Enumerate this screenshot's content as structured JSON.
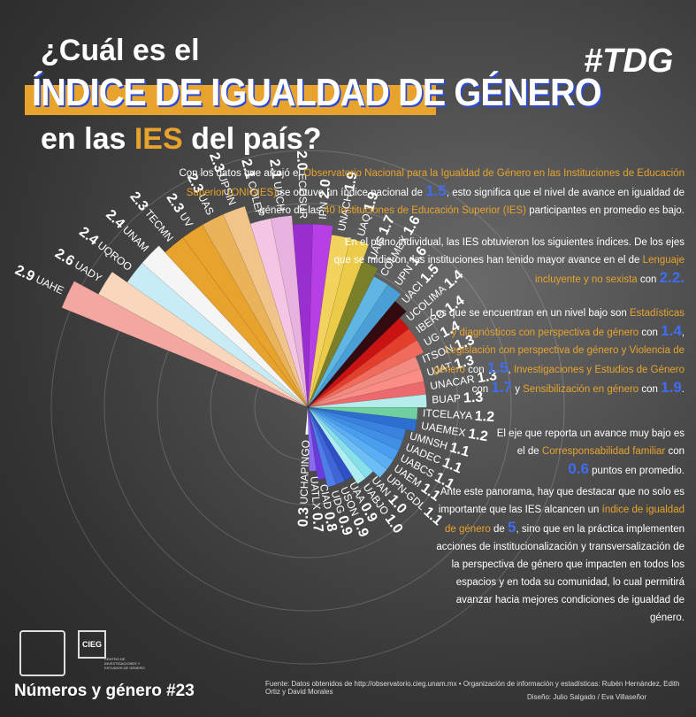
{
  "header": {
    "title_line1": "¿Cuál es el",
    "title_line2": "ÍNDICE DE IGUALDAD DE GÉNERO",
    "title_line3_a": "en las",
    "title_line3_hl": "IES",
    "title_line3_b": "del país?",
    "hashtag": "#TDG"
  },
  "paragraphs": {
    "p1_a": "Con los datos que arrojó el",
    "p1_hl1": "Observatorio Nacional para la Igualdad de Género en las Instituciones de Educación Superior (ONIGIES)",
    "p1_b": "se obtuvo un índice nacional de",
    "p1_num": "1.5",
    "p1_c": ", esto significa que el nivel de avance en igualdad de género de las",
    "p1_hl2": "40 Instituciones de Educación Superior (IES)",
    "p1_d": "participantes en promedio es bajo.",
    "p2_a": "En el plano individual, las IES obtuvieron los siguientes índices. De los ejes que se midieron, las instituciones han tenido mayor avance en el de",
    "p2_hl": "Lenguaje incluyente y no sexista",
    "p2_b": "con",
    "p2_num": "2.2.",
    "p3_a": "Los que se encuentran en un nivel bajo son",
    "p3_hl1": "Estadísticas y diagnósticos con perspectiva de género",
    "p3_b": "con",
    "p3_num1": "1.4",
    "p3_c": ",",
    "p3_hl2": "Legislación con perspectiva de género y Violencia de género",
    "p3_d": "con",
    "p3_num2": "1.5",
    "p3_e": ",",
    "p3_hl3": "Investigaciones y Estudios de Género",
    "p3_f": "con",
    "p3_num3": "1.7",
    "p3_g": "y",
    "p3_hl4": "Sensibilización en género",
    "p3_h": "con",
    "p3_num4": "1.9",
    "p3_i": ".",
    "p4_a": "El eje que reporta un avance muy bajo es el de",
    "p4_hl": "Corresponsabilidad familiar",
    "p4_b": "con",
    "p4_num": "0.6",
    "p4_c": "puntos en promedio.",
    "p5_a": "Ante este panorama, hay que destacar que no solo es importante que las IES alcancen un",
    "p5_hl": "índice de igualdad de género",
    "p5_b": "de",
    "p5_num": "5",
    "p5_c": ", sino que en la práctica implementen acciones de institucionalización y transversalización de la perspectiva de género que impacten en todos los espacios y en toda su comunidad, lo cual permitirá avanzar hacia mejores condiciones de igualdad de género."
  },
  "footer": {
    "series_title": "Números y género #23",
    "source": "Fuente: Datos obtenidos de http://observatorio.cieg.unam.mx   •   Organización de información y estadísticas: Rubén Hernández, Edith Ortiz y David Morales",
    "design": "Diseño: Julio Salgado / Eva Villaseñor",
    "logo_text": "CENTRO DE INVESTIGACIONES Y ESTUDIOS DE GÉNERO",
    "logo_letters": "CIEG"
  },
  "chart_data": {
    "type": "bar",
    "subtype": "radial",
    "categories": [
      "UAHE",
      "UADY",
      "UQROO",
      "UNAM",
      "TECMN",
      "UV",
      "UAS",
      "UPSIN",
      "COLEF",
      "UACH",
      "ECOSUR",
      "IPN",
      "UNACH",
      "UAQ",
      "UAIS",
      "COLMEX",
      "UPN",
      "UACI",
      "UCOLIMA",
      "IBERO",
      "UG",
      "ITSON",
      "UJAT",
      "UNACAR",
      "BUAP",
      "ITCELAYA",
      "UAEMEX",
      "UMNSH",
      "UADEC",
      "UABCS",
      "UAEM",
      "UPN-GDL",
      "UAN",
      "UABJO",
      "UAA",
      "USON",
      "UDG",
      "CIAD",
      "UATLX",
      "UCHAPINGO"
    ],
    "values": [
      2.9,
      2.6,
      2.4,
      2.4,
      2.3,
      2.3,
      2.3,
      2.3,
      2.1,
      2.1,
      2.0,
      2.0,
      1.9,
      1.9,
      1.7,
      1.6,
      1.6,
      1.5,
      1.4,
      1.4,
      1.4,
      1.3,
      1.3,
      1.3,
      1.3,
      1.2,
      1.2,
      1.1,
      1.1,
      1.1,
      1.1,
      1.1,
      1.0,
      1.0,
      0.9,
      0.9,
      0.9,
      0.8,
      0.7,
      0.3
    ],
    "value_labels": [
      "2.9",
      "2.6",
      "2.4",
      "2.4",
      "2.3",
      "2.3",
      "2.3",
      "2.3",
      "2.1",
      "2.1",
      "2.0",
      "2.0",
      "1.9",
      "1.9",
      "1.7",
      "1.6",
      "1.6",
      "1.5",
      "1.4",
      "1.4",
      "1.4",
      "1.3",
      "1.3",
      "1.3",
      "1.3",
      "1.2",
      "1.2",
      "1.1",
      "1.1",
      "1.1",
      "1.1",
      "1.1",
      "1.0",
      "1.0",
      "0.9",
      "0.9",
      "0.9",
      "0.8",
      "0.7",
      "0.3"
    ],
    "colors": [
      "#f4a6a0",
      "#f9d7bd",
      "#c8ecf5",
      "#f5f5f5",
      "#e8a32d",
      "#e8a32d",
      "#eab35a",
      "#f1c48a",
      "#f4c6e4",
      "#e8b2de",
      "#9a2fd0",
      "#b63fe6",
      "#f2d35e",
      "#eccb48",
      "#7a7f2a",
      "#5fb6e2",
      "#4aa0d6",
      "#330a10",
      "#c91313",
      "#e43f2c",
      "#f06b5c",
      "#f28b80",
      "#fa8e86",
      "#ec6a6d",
      "#b7ecec",
      "#72d0a0",
      "#2d6fd0",
      "#3a82e0",
      "#3f8fe6",
      "#4a9ef0",
      "#5aaef4",
      "#6bbef7",
      "#85e0ec",
      "#aeeef2",
      "#2f4fc4",
      "#3e66d8",
      "#4f7de8",
      "#6a3adc",
      "#8a6bf0",
      "#f7f7f7"
    ],
    "max_value": 3,
    "grid": true
  }
}
